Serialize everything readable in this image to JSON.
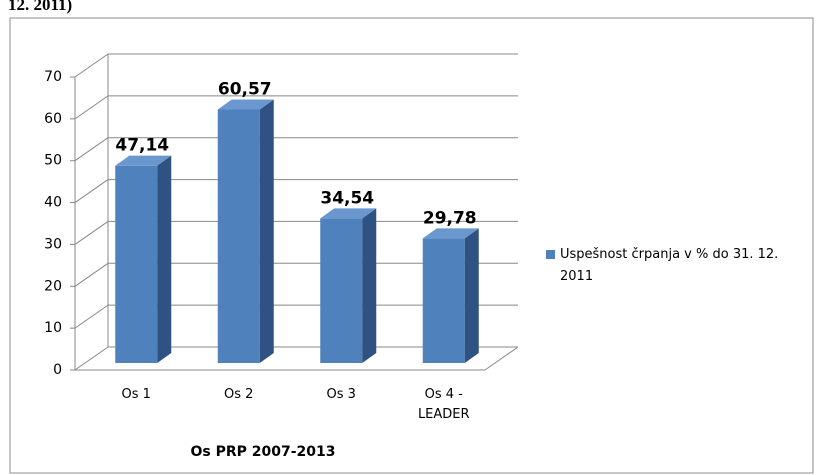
{
  "chart_data": {
    "type": "bar3d",
    "caption": "12. 2011)",
    "x_label": "Os PRP 2007-2013",
    "categories": [
      "Os 1",
      "Os 2",
      "Os 3",
      "Os 4 - LEADER"
    ],
    "series": [
      {
        "name": "Uspešnost črpanja v % do 31. 12. 2011",
        "color": "#4f81bd",
        "values": [
          47.14,
          60.57,
          34.54,
          29.78
        ],
        "value_labels": [
          "47,14",
          "60,57",
          "34,54",
          "29,78"
        ]
      }
    ],
    "ylim": [
      0,
      70
    ],
    "yticks": [
      0,
      10,
      20,
      30,
      40,
      50,
      60,
      70
    ],
    "grid": true,
    "legend": "right"
  }
}
